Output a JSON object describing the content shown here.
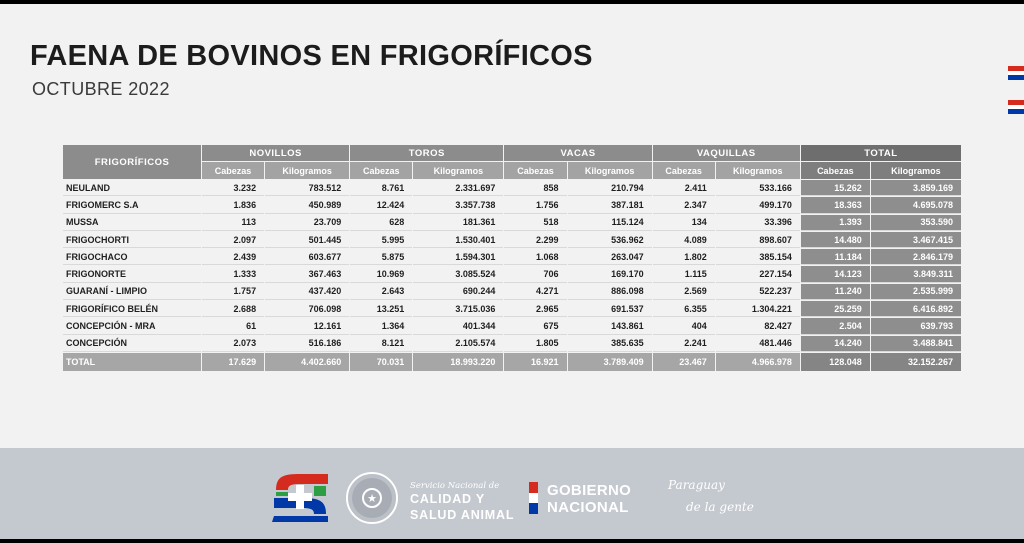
{
  "header": {
    "title": "FAENA DE BOVINOS EN FRIGORÍFICOS",
    "subtitle": "OCTUBRE 2022"
  },
  "table": {
    "first_col_header": "FRIGORÍFICOS",
    "groups": [
      "NOVILLOS",
      "TOROS",
      "VACAS",
      "VAQUILLAS",
      "TOTAL"
    ],
    "sub_headers": [
      "Cabezas",
      "Kilogramos"
    ],
    "rows": [
      {
        "name": "NEULAND",
        "values": [
          "3.232",
          "783.512",
          "8.761",
          "2.331.697",
          "858",
          "210.794",
          "2.411",
          "533.166",
          "15.262",
          "3.859.169"
        ]
      },
      {
        "name": "FRIGOMERC S.A",
        "values": [
          "1.836",
          "450.989",
          "12.424",
          "3.357.738",
          "1.756",
          "387.181",
          "2.347",
          "499.170",
          "18.363",
          "4.695.078"
        ]
      },
      {
        "name": "MUSSA",
        "values": [
          "113",
          "23.709",
          "628",
          "181.361",
          "518",
          "115.124",
          "134",
          "33.396",
          "1.393",
          "353.590"
        ]
      },
      {
        "name": "FRIGOCHORTI",
        "values": [
          "2.097",
          "501.445",
          "5.995",
          "1.530.401",
          "2.299",
          "536.962",
          "4.089",
          "898.607",
          "14.480",
          "3.467.415"
        ]
      },
      {
        "name": "FRIGOCHACO",
        "values": [
          "2.439",
          "603.677",
          "5.875",
          "1.594.301",
          "1.068",
          "263.047",
          "1.802",
          "385.154",
          "11.184",
          "2.846.179"
        ]
      },
      {
        "name": "FRIGONORTE",
        "values": [
          "1.333",
          "367.463",
          "10.969",
          "3.085.524",
          "706",
          "169.170",
          "1.115",
          "227.154",
          "14.123",
          "3.849.311"
        ]
      },
      {
        "name": "GUARANÍ - LIMPIO",
        "values": [
          "1.757",
          "437.420",
          "2.643",
          "690.244",
          "4.271",
          "886.098",
          "2.569",
          "522.237",
          "11.240",
          "2.535.999"
        ]
      },
      {
        "name": "FRIGORÍFICO BELÉN",
        "values": [
          "2.688",
          "706.098",
          "13.251",
          "3.715.036",
          "2.965",
          "691.537",
          "6.355",
          "1.304.221",
          "25.259",
          "6.416.892"
        ]
      },
      {
        "name": "CONCEPCIÓN - MRA",
        "values": [
          "61",
          "12.161",
          "1.364",
          "401.344",
          "675",
          "143.861",
          "404",
          "82.427",
          "2.504",
          "639.793"
        ]
      },
      {
        "name": "CONCEPCIÓN",
        "values": [
          "2.073",
          "516.186",
          "8.121",
          "2.105.574",
          "1.805",
          "385.635",
          "2.241",
          "481.446",
          "14.240",
          "3.488.841"
        ]
      }
    ],
    "total_row": {
      "name": "TOTAL",
      "values": [
        "17.629",
        "4.402.660",
        "70.031",
        "18.993.220",
        "16.921",
        "3.789.409",
        "23.467",
        "4.966.978",
        "128.048",
        "32.152.267"
      ]
    }
  },
  "footer": {
    "service_line1": "Servicio Nacional de",
    "service_line2": "CALIDAD Y",
    "service_line3": "SALUD ANIMAL",
    "gov_line1": "GOBIERNO",
    "gov_line2": "NACIONAL",
    "slogan_line1": "Paraguay",
    "slogan_line2": "de la gente",
    "logos": [
      "senacsa-logo",
      "national-seal"
    ]
  },
  "colors": {
    "flag_red": "#d52b1e",
    "flag_white": "#ffffff",
    "flag_blue": "#0038a8",
    "header_grey": "#8c8c8c",
    "total_grey": "#6e6e6e"
  }
}
